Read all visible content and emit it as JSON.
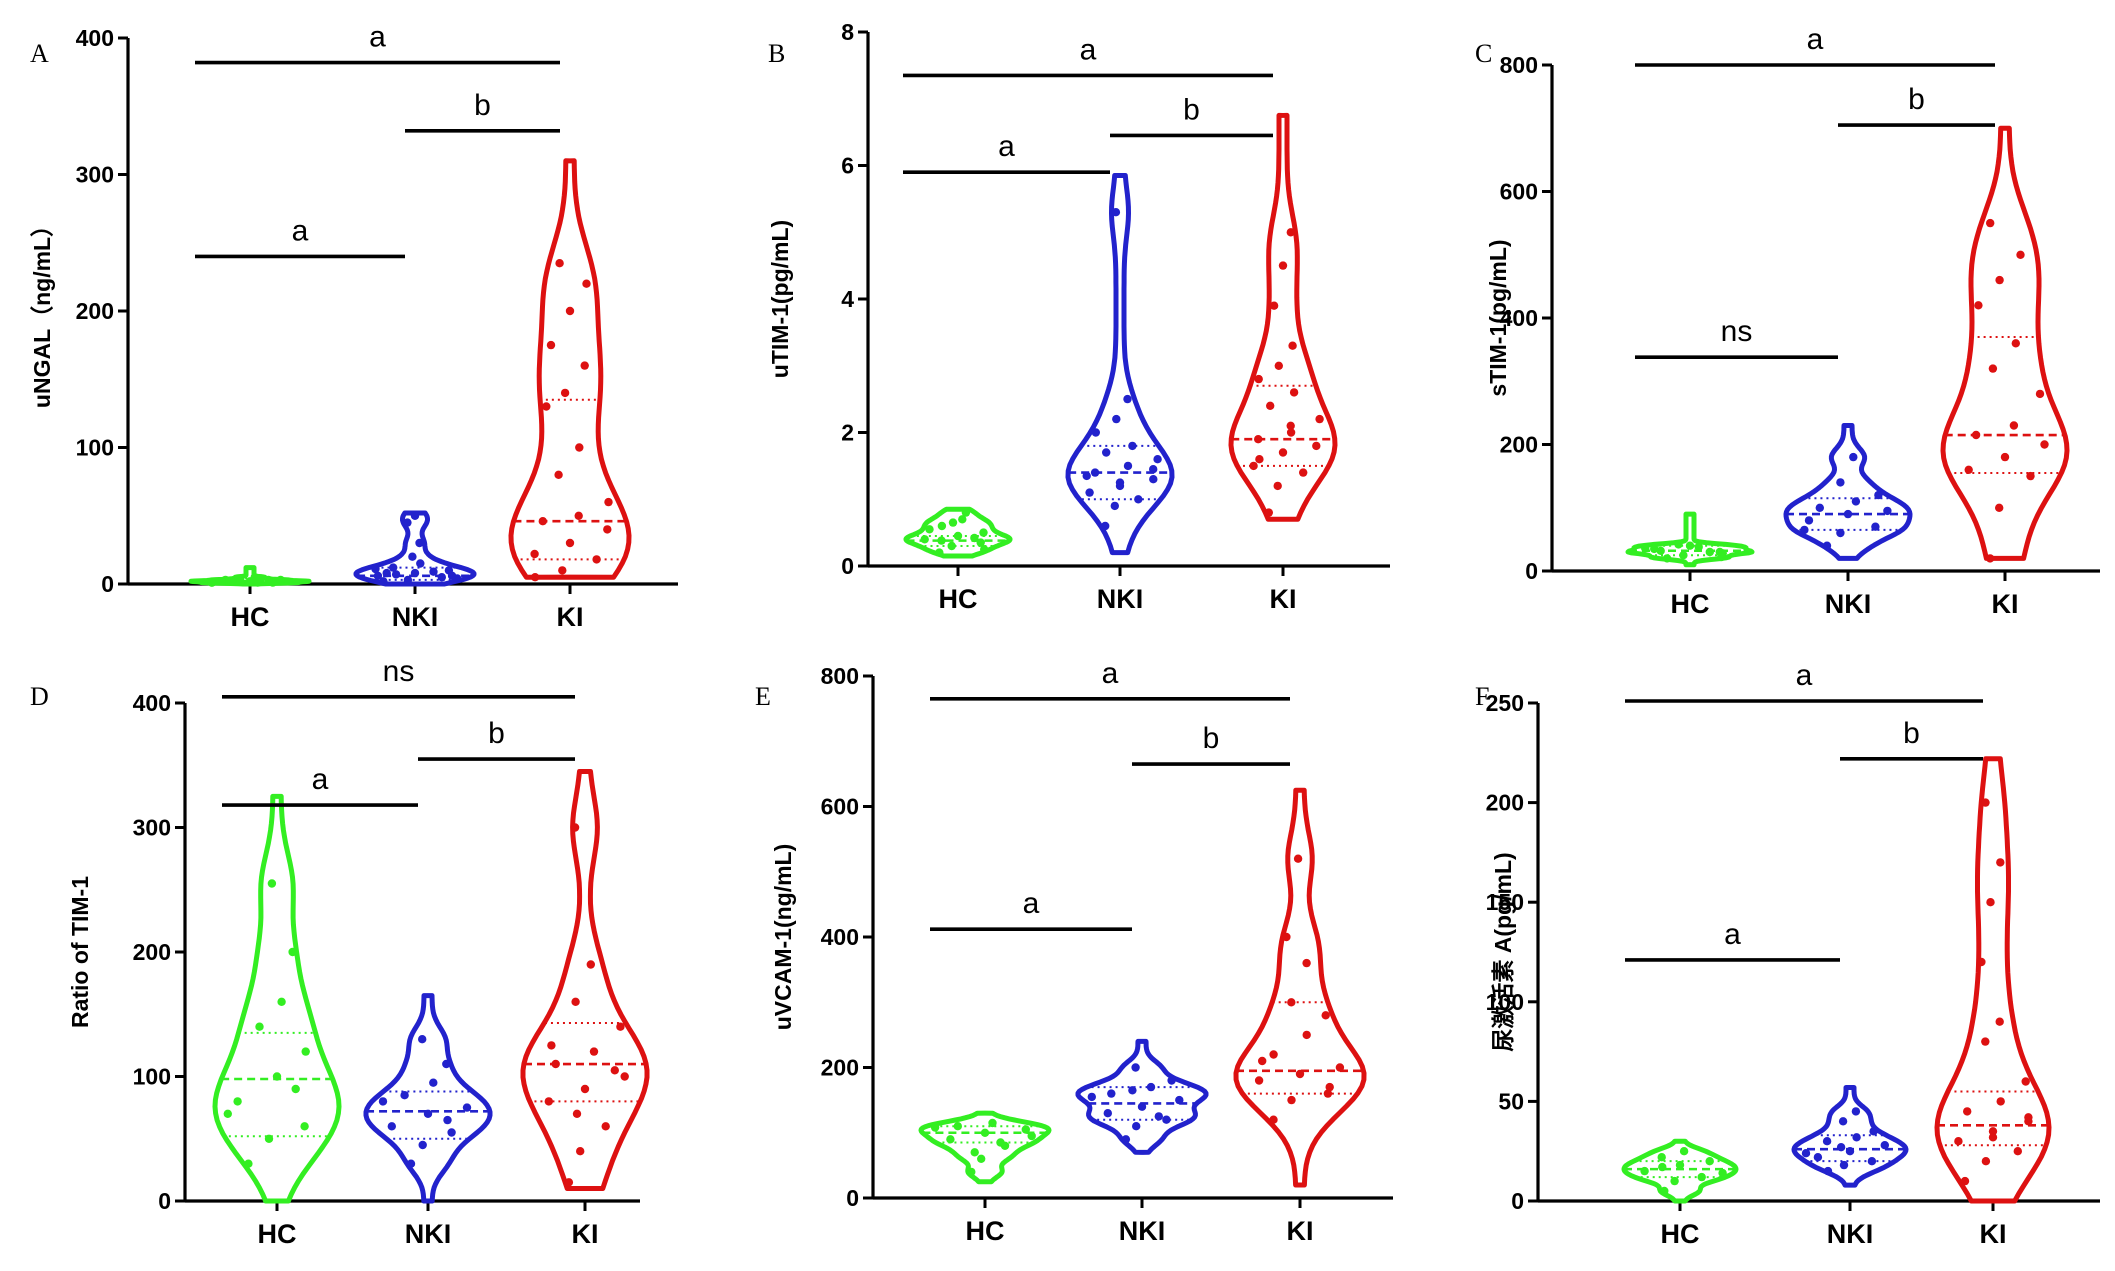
{
  "colors": {
    "HC": "#33ee22",
    "NKI": "#2222cc",
    "KI": "#dd1111"
  },
  "categories": [
    "HC",
    "NKI",
    "KI"
  ],
  "chart_data": [
    {
      "type": "violin",
      "panel": "A",
      "ylabel": "uNGAL（ng/mL）",
      "ylim": [
        0,
        400
      ],
      "yticks": [
        0,
        100,
        200,
        300,
        400
      ],
      "categories": [
        "HC",
        "NKI",
        "KI"
      ],
      "series": [
        {
          "name": "HC",
          "min": 0,
          "max": 12,
          "q1": 1,
          "median": 2,
          "q3": 4,
          "points": [
            1,
            2,
            1,
            3,
            2,
            4,
            2,
            1,
            3,
            2,
            5,
            1,
            2,
            3
          ]
        },
        {
          "name": "NKI",
          "min": 0,
          "max": 52,
          "q1": 3,
          "median": 6,
          "q3": 12,
          "points": [
            2,
            3,
            5,
            6,
            8,
            10,
            12,
            15,
            4,
            7,
            9,
            11,
            20,
            30,
            45,
            50,
            6,
            8
          ]
        },
        {
          "name": "KI",
          "min": 5,
          "max": 310,
          "q1": 18,
          "median": 46,
          "q3": 135,
          "points": [
            5,
            10,
            18,
            22,
            30,
            40,
            46,
            50,
            60,
            80,
            100,
            130,
            140,
            160,
            175,
            200,
            220,
            235
          ]
        }
      ],
      "significance": [
        {
          "from": 0,
          "to": 1,
          "label": "a",
          "y": 240
        },
        {
          "from": 1,
          "to": 2,
          "label": "b",
          "y": 332
        },
        {
          "from": 0,
          "to": 2,
          "label": "a",
          "y": 382
        }
      ]
    },
    {
      "type": "violin",
      "panel": "B",
      "ylabel": "uTIM-1(pg/mL)",
      "ylim": [
        0,
        8
      ],
      "yticks": [
        0,
        2,
        4,
        6,
        8
      ],
      "categories": [
        "HC",
        "NKI",
        "KI"
      ],
      "series": [
        {
          "name": "HC",
          "min": 0.15,
          "max": 0.85,
          "q1": 0.3,
          "median": 0.38,
          "q3": 0.45,
          "points": [
            0.2,
            0.3,
            0.35,
            0.4,
            0.45,
            0.5,
            0.6,
            0.7,
            0.25,
            0.38,
            0.42,
            0.55,
            0.65,
            0.8
          ]
        },
        {
          "name": "NKI",
          "min": 0.2,
          "max": 5.85,
          "q1": 1.0,
          "median": 1.4,
          "q3": 1.8,
          "points": [
            0.6,
            0.9,
            1.0,
            1.1,
            1.2,
            1.3,
            1.4,
            1.5,
            1.6,
            1.7,
            1.8,
            2.0,
            2.2,
            2.5,
            1.35,
            1.25,
            1.45,
            5.3
          ]
        },
        {
          "name": "KI",
          "min": 0.7,
          "max": 6.75,
          "q1": 1.5,
          "median": 1.9,
          "q3": 2.7,
          "points": [
            0.8,
            1.2,
            1.4,
            1.5,
            1.7,
            1.8,
            1.9,
            2.0,
            2.2,
            2.4,
            2.6,
            2.8,
            3.0,
            3.3,
            3.9,
            4.5,
            5.0,
            1.6,
            2.1
          ]
        }
      ],
      "significance": [
        {
          "from": 0,
          "to": 1,
          "label": "a",
          "y": 5.9
        },
        {
          "from": 1,
          "to": 2,
          "label": "b",
          "y": 6.45
        },
        {
          "from": 0,
          "to": 2,
          "label": "a",
          "y": 7.35
        }
      ]
    },
    {
      "type": "violin",
      "panel": "C",
      "ylabel": "sTIM-1(pg/mL)",
      "ylim": [
        0,
        800
      ],
      "yticks": [
        0,
        200,
        400,
        600,
        800
      ],
      "categories": [
        "HC",
        "NKI",
        "KI"
      ],
      "series": [
        {
          "name": "HC",
          "min": 10,
          "max": 90,
          "q1": 25,
          "median": 32,
          "q3": 40,
          "points": [
            20,
            25,
            30,
            35,
            40,
            28,
            32,
            38,
            22,
            42,
            30,
            36
          ]
        },
        {
          "name": "NKI",
          "min": 20,
          "max": 230,
          "q1": 65,
          "median": 90,
          "q3": 115,
          "points": [
            40,
            60,
            70,
            80,
            90,
            95,
            100,
            110,
            120,
            140,
            180,
            65
          ]
        },
        {
          "name": "KI",
          "min": 20,
          "max": 700,
          "q1": 155,
          "median": 215,
          "q3": 370,
          "points": [
            20,
            100,
            150,
            160,
            180,
            200,
            215,
            230,
            280,
            320,
            360,
            420,
            460,
            500,
            550
          ]
        }
      ],
      "significance": [
        {
          "from": 0,
          "to": 1,
          "label": "ns",
          "y": 338
        },
        {
          "from": 1,
          "to": 2,
          "label": "b",
          "y": 705
        },
        {
          "from": 0,
          "to": 2,
          "label": "a",
          "y": 800
        }
      ]
    },
    {
      "type": "violin",
      "panel": "D",
      "ylabel": "Ratio of TIM-1",
      "ylim": [
        0,
        400
      ],
      "yticks": [
        0,
        100,
        200,
        300,
        400
      ],
      "categories": [
        "HC",
        "NKI",
        "KI"
      ],
      "series": [
        {
          "name": "HC",
          "min": 0,
          "max": 325,
          "q1": 52,
          "median": 98,
          "q3": 135,
          "points": [
            30,
            50,
            60,
            80,
            100,
            120,
            140,
            160,
            200,
            255,
            90,
            70
          ]
        },
        {
          "name": "NKI",
          "min": 0,
          "max": 165,
          "q1": 50,
          "median": 72,
          "q3": 88,
          "points": [
            30,
            45,
            55,
            60,
            70,
            75,
            85,
            95,
            110,
            130,
            65,
            80
          ]
        },
        {
          "name": "KI",
          "min": 10,
          "max": 345,
          "q1": 80,
          "median": 110,
          "q3": 143,
          "points": [
            15,
            40,
            60,
            80,
            90,
            100,
            110,
            120,
            140,
            160,
            190,
            300,
            70,
            105,
            125
          ]
        }
      ],
      "significance": [
        {
          "from": 0,
          "to": 1,
          "label": "a",
          "y": 318
        },
        {
          "from": 1,
          "to": 2,
          "label": "b",
          "y": 355
        },
        {
          "from": 0,
          "to": 2,
          "label": "ns",
          "y": 405
        }
      ]
    },
    {
      "type": "violin",
      "panel": "E",
      "ylabel": "uVCAM-1(ng/mL)",
      "ylim": [
        0,
        800
      ],
      "yticks": [
        0,
        200,
        400,
        600,
        800
      ],
      "categories": [
        "HC",
        "NKI",
        "KI"
      ],
      "series": [
        {
          "name": "HC",
          "min": 25,
          "max": 130,
          "q1": 85,
          "median": 100,
          "q3": 110,
          "points": [
            40,
            60,
            80,
            90,
            100,
            105,
            110,
            115,
            95,
            70,
            85,
            108
          ]
        },
        {
          "name": "NKI",
          "min": 70,
          "max": 240,
          "q1": 120,
          "median": 145,
          "q3": 170,
          "points": [
            90,
            110,
            120,
            130,
            140,
            150,
            160,
            170,
            180,
            200,
            125,
            155,
            165
          ]
        },
        {
          "name": "KI",
          "min": 20,
          "max": 625,
          "q1": 160,
          "median": 195,
          "q3": 300,
          "points": [
            120,
            150,
            160,
            180,
            190,
            200,
            220,
            250,
            280,
            300,
            360,
            400,
            520,
            170,
            210
          ]
        }
      ],
      "significance": [
        {
          "from": 0,
          "to": 1,
          "label": "a",
          "y": 412
        },
        {
          "from": 1,
          "to": 2,
          "label": "b",
          "y": 665
        },
        {
          "from": 0,
          "to": 2,
          "label": "a",
          "y": 765
        }
      ]
    },
    {
      "type": "violin",
      "panel": "F",
      "ylabel": "尿激活素 A(pg/mL)",
      "ylim": [
        0,
        250
      ],
      "yticks": [
        0,
        50,
        100,
        150,
        200,
        250
      ],
      "categories": [
        "HC",
        "NKI",
        "KI"
      ],
      "series": [
        {
          "name": "HC",
          "min": 0,
          "max": 30,
          "q1": 12,
          "median": 16,
          "q3": 20,
          "points": [
            5,
            10,
            12,
            15,
            18,
            20,
            22,
            25,
            14,
            17
          ]
        },
        {
          "name": "NKI",
          "min": 8,
          "max": 57,
          "q1": 20,
          "median": 26,
          "q3": 33,
          "points": [
            15,
            18,
            20,
            22,
            25,
            28,
            30,
            32,
            35,
            40,
            45,
            24,
            27
          ]
        },
        {
          "name": "KI",
          "min": 0,
          "max": 222,
          "q1": 28,
          "median": 38,
          "q3": 55,
          "points": [
            10,
            20,
            25,
            30,
            35,
            40,
            45,
            50,
            60,
            80,
            90,
            120,
            150,
            170,
            200,
            32,
            42
          ]
        }
      ],
      "significance": [
        {
          "from": 0,
          "to": 1,
          "label": "a",
          "y": 121
        },
        {
          "from": 1,
          "to": 2,
          "label": "b",
          "y": 222
        },
        {
          "from": 0,
          "to": 2,
          "label": "a",
          "y": 251
        }
      ]
    }
  ]
}
